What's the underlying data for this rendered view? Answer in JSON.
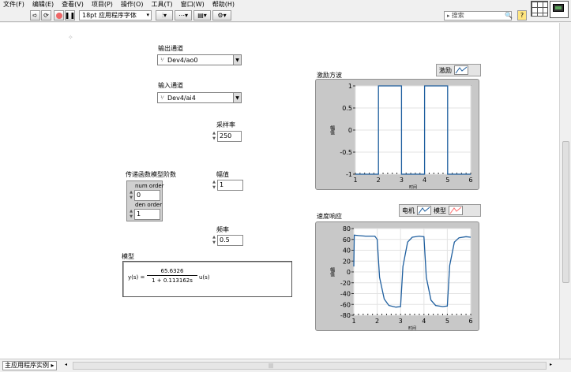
{
  "menubar": {
    "items": [
      "文件(F)",
      "编辑(E)",
      "查看(V)",
      "项目(P)",
      "操作(O)",
      "工具(T)",
      "窗口(W)",
      "帮助(H)"
    ]
  },
  "toolbar": {
    "font_select": "18pt 应用程序字体",
    "search_placeholder": "搜索"
  },
  "controls": {
    "output_channel": {
      "label": "输出通道",
      "value": "Dev4/ao0"
    },
    "input_channel": {
      "label": "输入通道",
      "value": "Dev4/ai4"
    },
    "sample_rate": {
      "label": "采样率",
      "value": "250"
    },
    "amplitude": {
      "label": "幅值",
      "value": "1"
    },
    "frequency": {
      "label": "频率",
      "value": "0.5"
    },
    "tf_order": {
      "label": "传递函数模型阶数",
      "num_label": "num order",
      "num_value": "0",
      "den_label": "den order",
      "den_value": "1"
    }
  },
  "model": {
    "label": "模型",
    "lhs": "y(s) =",
    "numerator": "65.6326",
    "denominator": "1 + 0.113162s",
    "rhs": "u(s)"
  },
  "graph1": {
    "title": "激励方波",
    "legend": "激励",
    "xlabel": "时间",
    "ylabel": "幅值"
  },
  "graph2": {
    "title": "速度响应",
    "legend_motor": "电机",
    "legend_model": "模型",
    "xlabel": "时间",
    "ylabel": "幅值"
  },
  "statusbar": {
    "label": "主应用程序实例"
  },
  "colors": {
    "trace": "#1f5f9f",
    "model_trace": "#ff6f6f",
    "panel_bg": "#ffffff",
    "frame": "#c8c8c8"
  },
  "chart_data": [
    {
      "type": "line",
      "title": "激励方波",
      "xlabel": "时间",
      "ylabel": "幅值",
      "xlim": [
        1,
        6
      ],
      "ylim": [
        -1,
        1
      ],
      "xticks": [
        1,
        2,
        3,
        4,
        5,
        6
      ],
      "yticks": [
        1,
        0.5,
        0,
        -0.5,
        -1
      ],
      "series": [
        {
          "name": "激励",
          "x": [
            1,
            2,
            2,
            3,
            3,
            4,
            4,
            5,
            5,
            6
          ],
          "y": [
            -1,
            -1,
            1,
            1,
            -1,
            -1,
            1,
            1,
            -1,
            -1
          ]
        }
      ]
    },
    {
      "type": "line",
      "title": "速度响应",
      "xlabel": "时间",
      "ylabel": "幅值",
      "xlim": [
        1,
        6
      ],
      "ylim": [
        -80,
        80
      ],
      "xticks": [
        1,
        2,
        3,
        4,
        5,
        6
      ],
      "yticks": [
        80,
        60,
        40,
        20,
        0,
        -20,
        -40,
        -60,
        -80
      ],
      "series": [
        {
          "name": "电机",
          "x": [
            1,
            1.02,
            1.2,
            1.5,
            1.9,
            2.0,
            2.1,
            2.3,
            2.5,
            2.8,
            3.0,
            3.1,
            3.3,
            3.5,
            3.8,
            4.0,
            4.1,
            4.3,
            4.5,
            4.8,
            5.0,
            5.1,
            5.3,
            5.5,
            5.8,
            6.0
          ],
          "y": [
            10,
            68,
            67,
            66,
            66,
            60,
            -10,
            -50,
            -62,
            -65,
            -64,
            10,
            55,
            64,
            66,
            65,
            -10,
            -52,
            -62,
            -64,
            -63,
            12,
            55,
            63,
            65,
            64
          ]
        }
      ]
    }
  ]
}
